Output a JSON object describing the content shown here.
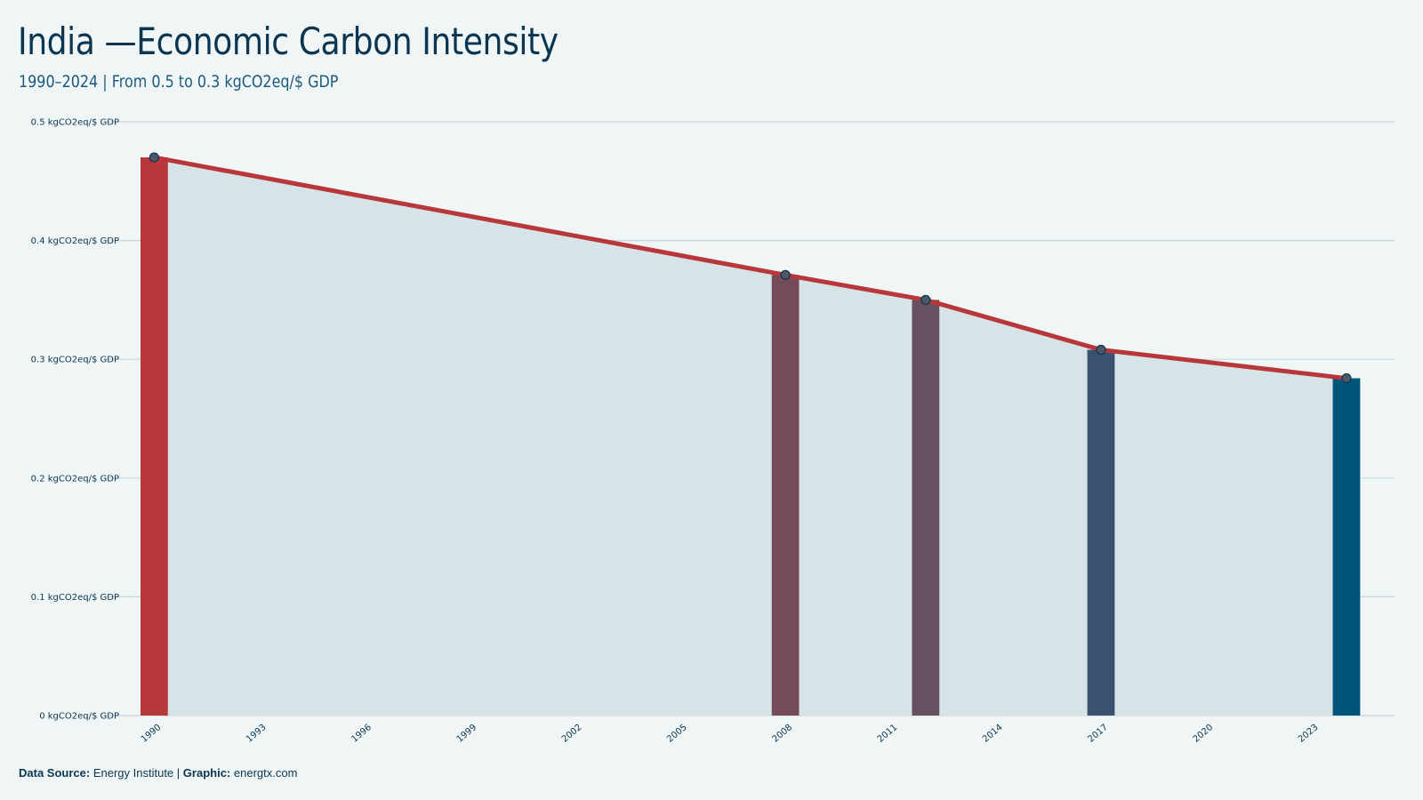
{
  "header": {
    "title": "India —Economic Carbon Intensity",
    "subtitle": "1990–2024 | From 0.5 to 0.3 kgCO2eq/$ GDP"
  },
  "footer": {
    "source_label": "Data Source:",
    "source_value": "Energy Institute",
    "separator": "|",
    "graphic_label": "Graphic:",
    "graphic_value": "energtx.com"
  },
  "chart_data": {
    "type": "area",
    "title": "India —Economic Carbon Intensity",
    "subtitle": "1990–2024 | From 0.5 to 0.3 kgCO2eq/$ GDP",
    "xlabel": "",
    "ylabel": "",
    "xlim": [
      1990,
      2024
    ],
    "ylim": [
      0,
      0.5
    ],
    "grid": true,
    "legend": "none",
    "x_ticks": [
      "1990",
      "1993",
      "1996",
      "1999",
      "2002",
      "2005",
      "2008",
      "2011",
      "2014",
      "2017",
      "2020",
      "2023"
    ],
    "y_ticks": [
      "0 kgCO2eq/$ GDP",
      "0.1 kgCO2eq/$ GDP",
      "0.2 kgCO2eq/$ GDP",
      "0.3 kgCO2eq/$ GDP",
      "0.4 kgCO2eq/$ GDP",
      "0.5 kgCO2eq/$ GDP"
    ],
    "y_tick_values": [
      0,
      0.1,
      0.2,
      0.3,
      0.4,
      0.5
    ],
    "series": [
      {
        "x": [
          1990,
          2008,
          2012,
          2017,
          2024
        ],
        "values": [
          0.47,
          0.371,
          0.35,
          0.308,
          0.284
        ]
      }
    ],
    "highlight_bars": [
      {
        "x": 1990,
        "value": 0.47,
        "color": "#b8373b"
      },
      {
        "x": 2008,
        "value": 0.371,
        "color": "#764b59"
      },
      {
        "x": 2012,
        "value": 0.35,
        "color": "#67505f"
      },
      {
        "x": 2017,
        "value": 0.308,
        "color": "#3a5170"
      },
      {
        "x": 2024,
        "value": 0.284,
        "color": "#00557a"
      }
    ],
    "colors": {
      "line": "#b8373b",
      "area": "#d6e4e8",
      "grid": "#c9d6da",
      "marker_fill": "#4c5866",
      "marker_stroke": "#0b3550"
    }
  }
}
